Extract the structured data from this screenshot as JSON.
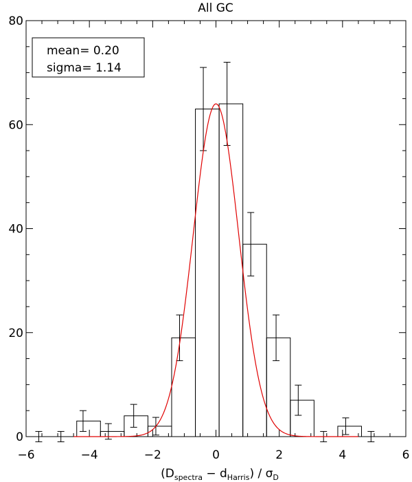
{
  "chart_data": {
    "type": "bar",
    "title": "All GC",
    "xlabel": {
      "prefix": "(D",
      "sub1": "spectra",
      "middle": " − d",
      "sub2": "Harris",
      "suffix": ") / σ",
      "sub3": "D"
    },
    "ylabel": "",
    "xlim": [
      -6,
      6
    ],
    "ylim": [
      0,
      80
    ],
    "x_ticks": [
      -6,
      -4,
      -2,
      0,
      2,
      4,
      6
    ],
    "y_ticks": [
      0,
      20,
      40,
      60,
      80
    ],
    "annotation": [
      "mean=  0.20",
      "sigma=  1.14"
    ],
    "histogram": {
      "color": "#000000",
      "bins": [
        {
          "x0": -5.9,
          "x1": -5.15,
          "count": 0
        },
        {
          "x0": -5.15,
          "x1": -4.4,
          "count": 0
        },
        {
          "x0": -4.4,
          "x1": -3.65,
          "count": 3
        },
        {
          "x0": -3.65,
          "x1": -2.9,
          "count": 1
        },
        {
          "x0": -2.9,
          "x1": -2.15,
          "count": 4
        },
        {
          "x0": -2.15,
          "x1": -1.4,
          "count": 2
        },
        {
          "x0": -1.4,
          "x1": -0.65,
          "count": 19
        },
        {
          "x0": -0.65,
          "x1": 0.1,
          "count": 63
        },
        {
          "x0": 0.1,
          "x1": 0.85,
          "count": 64
        },
        {
          "x0": 0.85,
          "x1": 1.6,
          "count": 37
        },
        {
          "x0": 1.6,
          "x1": 2.35,
          "count": 19
        },
        {
          "x0": 2.35,
          "x1": 3.1,
          "count": 7
        },
        {
          "x0": 3.1,
          "x1": 3.85,
          "count": 0
        },
        {
          "x0": 3.85,
          "x1": 4.6,
          "count": 2
        },
        {
          "x0": 4.6,
          "x1": 5.35,
          "count": 0
        }
      ]
    },
    "error_bars": {
      "color": "#000000",
      "points": [
        {
          "x": -5.6,
          "y": 0,
          "err": 1
        },
        {
          "x": -4.9,
          "y": 0,
          "err": 1
        },
        {
          "x": -4.2,
          "y": 3,
          "err": 2
        },
        {
          "x": -3.4,
          "y": 1,
          "err": 1.5
        },
        {
          "x": -2.6,
          "y": 4,
          "err": 2.2
        },
        {
          "x": -1.9,
          "y": 2,
          "err": 1.7
        },
        {
          "x": -1.15,
          "y": 19,
          "err": 4.4
        },
        {
          "x": -0.4,
          "y": 63,
          "err": 8
        },
        {
          "x": 0.35,
          "y": 64,
          "err": 8
        },
        {
          "x": 1.1,
          "y": 37,
          "err": 6.1
        },
        {
          "x": 1.9,
          "y": 19,
          "err": 4.4
        },
        {
          "x": 2.6,
          "y": 7,
          "err": 2.9
        },
        {
          "x": 3.4,
          "y": 0,
          "err": 1
        },
        {
          "x": 4.1,
          "y": 2,
          "err": 1.6
        },
        {
          "x": 4.9,
          "y": 0,
          "err": 1
        }
      ]
    },
    "fit_curve": {
      "type": "gaussian",
      "amplitude": 64,
      "mean": 0.0,
      "sigma": 0.72,
      "color": "#e00000"
    }
  }
}
